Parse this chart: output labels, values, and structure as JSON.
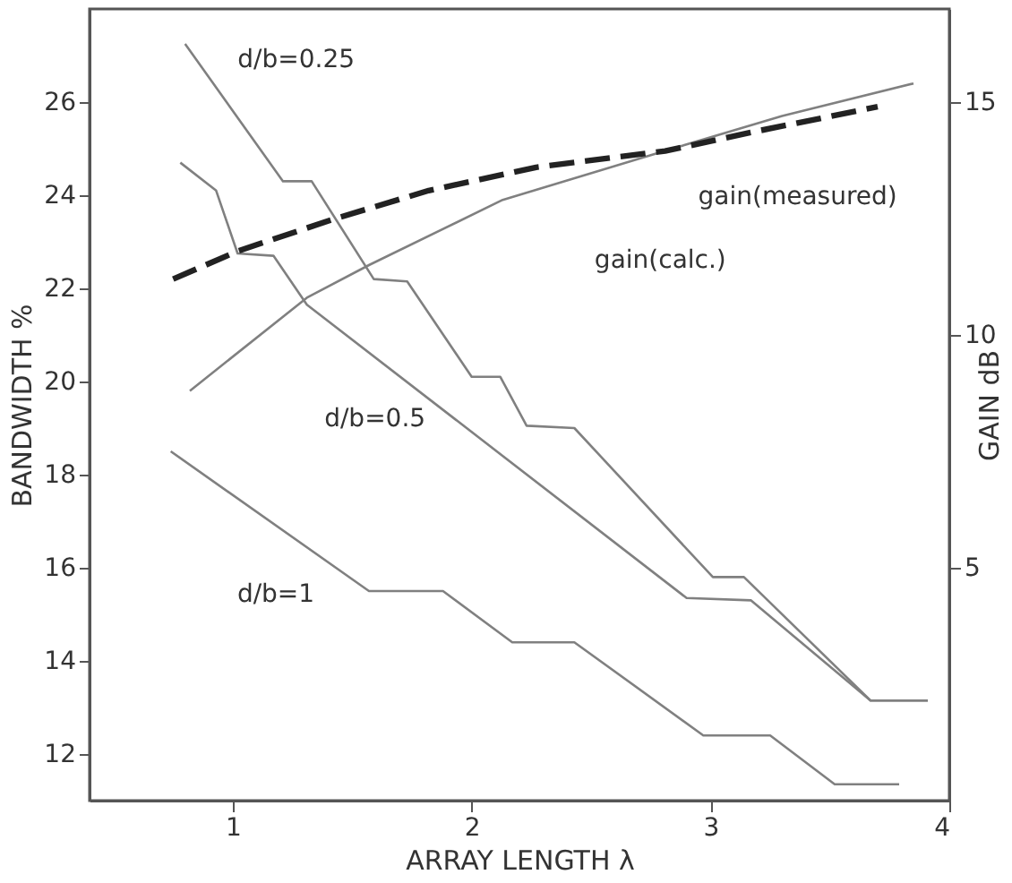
{
  "chart_data": {
    "type": "line",
    "xlabel": "ARRAY LENGTH λ",
    "ylabel": "BANDWIDTH %",
    "y2label": "GAIN dB",
    "xlim": [
      0.4,
      4
    ],
    "xticks": [
      1,
      2,
      3,
      4
    ],
    "ylim": [
      11,
      28
    ],
    "yticks": [
      12,
      14,
      16,
      18,
      20,
      22,
      24,
      26
    ],
    "y2lim": [
      0,
      17
    ],
    "y2ticks": [
      5,
      10,
      15
    ],
    "grid": false,
    "legend": false,
    "marker": "none",
    "series": [
      {
        "name": "d/b=0.25",
        "color": "#808080",
        "line_style": "solid",
        "x": [
          0.8,
          1.21,
          1.33,
          1.59,
          1.73,
          2.0,
          2.12,
          2.23,
          2.43,
          3.01,
          3.14,
          3.67,
          3.91
        ],
        "values": [
          27.25,
          24.3,
          24.3,
          22.2,
          22.15,
          20.1,
          20.1,
          19.05,
          19.0,
          15.8,
          15.8,
          13.15,
          13.15
        ]
      },
      {
        "name": "d/b=0.5",
        "color": "#808080",
        "line_style": "solid",
        "x": [
          0.78,
          0.93,
          1.02,
          1.17,
          1.31,
          2.9,
          3.17,
          3.67,
          3.91
        ],
        "values": [
          24.7,
          24.1,
          22.75,
          22.7,
          21.65,
          15.35,
          15.3,
          13.15,
          13.15
        ]
      },
      {
        "name": "d/b=1",
        "color": "#808080",
        "line_style": "solid",
        "x": [
          0.74,
          1.57,
          1.88,
          2.17,
          2.43,
          2.97,
          3.25,
          3.52,
          3.79
        ],
        "values": [
          18.5,
          15.5,
          15.5,
          14.4,
          14.4,
          12.4,
          12.4,
          11.35,
          11.35
        ]
      },
      {
        "name": "gain(calc.)",
        "color": "#808080",
        "line_style": "solid",
        "axis": "y2",
        "x": [
          0.82,
          1.31,
          1.57,
          2.13,
          2.84,
          3.3,
          3.85
        ],
        "values": [
          8.8,
          10.8,
          11.5,
          12.9,
          14.0,
          14.7,
          15.4
        ]
      },
      {
        "name": "gain(measured)",
        "color": "#222222",
        "line_style": "dashed",
        "axis": "y2",
        "x": [
          0.75,
          1.02,
          1.43,
          1.82,
          2.27,
          2.81,
          3.17,
          3.7
        ],
        "values": [
          11.2,
          11.8,
          12.5,
          13.1,
          13.6,
          13.95,
          14.35,
          14.9
        ]
      }
    ]
  }
}
